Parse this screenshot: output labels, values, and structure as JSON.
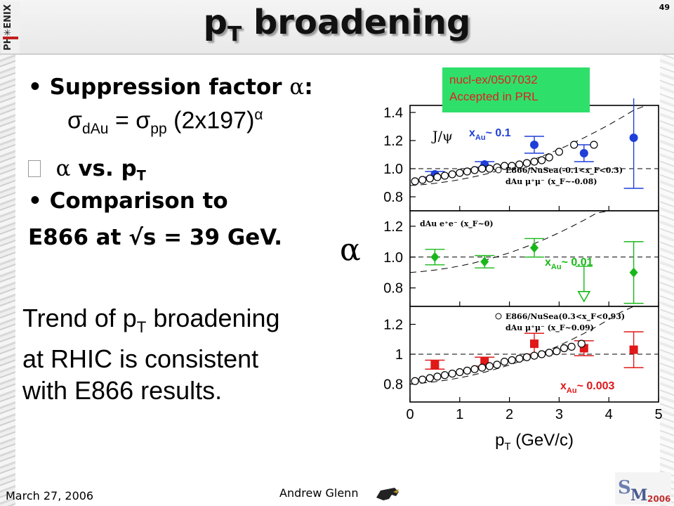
{
  "slide": {
    "title_main": "p",
    "title_sub": "T",
    "title_rest": " broadening",
    "number": "49"
  },
  "bullets": {
    "b1_text": "Suppression factor ",
    "b1_symbol": "α",
    "b1_colon": ":",
    "formula_sigma1": "σ",
    "formula_sub1": "dAu",
    "formula_eq": " = ",
    "formula_sigma2": "σ",
    "formula_sub2": "pp",
    "formula_rest": " (2x197)",
    "formula_sup": "α",
    "b2_marker": "",
    "b2_alpha": "α",
    "b2_text": " vs. p",
    "b2_sub": "T",
    "b3_text": "Comparison to",
    "b4_text": "E866 at √s = 39 GeV."
  },
  "trend": {
    "line1_a": "Trend of p",
    "line1_sub": "T",
    "line1_b": " broadening",
    "line2": "at RHIC is consistent",
    "line3": "with E866 results."
  },
  "ref_box": {
    "line1": "nucl-ex/0507032",
    "line2": "Accepted in PRL"
  },
  "footer": {
    "date": "March 27, 2006",
    "author": "Andrew Glenn"
  },
  "chart_data": {
    "type": "scatter",
    "y_symbol": "α",
    "xlabel": "p",
    "xlabel_sub": "T",
    "xlabel_rest": " (GeV/c)",
    "xlim": [
      0,
      5
    ],
    "xticks": [
      "0",
      "1",
      "2",
      "3",
      "4",
      "5"
    ],
    "panels": [
      {
        "ylim": [
          0.7,
          1.45
        ],
        "yticks": [
          "0.8",
          "1.0",
          "1.2",
          "1.4"
        ],
        "yvals": [
          0.8,
          1.0,
          1.2,
          1.4
        ],
        "label_jpsi": "J/ψ",
        "xau_main": "x",
        "xau_sub": "Au",
        "xau_rest": "~ 0.1",
        "xau_color": "#1f3fd8",
        "legend": [
          "E866/NuSea(-0.1<x_F<0.3)",
          "dAu μ⁺μ⁻ (x_F~-0.08)"
        ],
        "series": [
          {
            "name": "dAu μ⁺μ⁻ (x_F~-0.08)",
            "color": "#1f3fd8",
            "marker": "circle",
            "x": [
              0.5,
              1.5,
              2.5,
              3.5,
              4.5
            ],
            "y": [
              0.96,
              1.03,
              1.17,
              1.11,
              1.22
            ],
            "err": [
              0.02,
              0.02,
              0.06,
              0.06,
              0.36
            ]
          },
          {
            "name": "E866/NuSea(-0.1<x_F<0.3)",
            "color": "#000000",
            "marker": "open-circle",
            "x": [
              0.1,
              0.25,
              0.4,
              0.55,
              0.7,
              0.85,
              1.0,
              1.15,
              1.3,
              1.45,
              1.6,
              1.75,
              1.9,
              2.05,
              2.2,
              2.35,
              2.5,
              2.65,
              2.8,
              3.0,
              3.3,
              3.7
            ],
            "y": [
              0.91,
              0.92,
              0.93,
              0.94,
              0.95,
              0.96,
              0.97,
              0.98,
              0.99,
              1.0,
              1.0,
              1.01,
              1.02,
              1.02,
              1.03,
              1.04,
              1.05,
              1.06,
              1.08,
              1.12,
              1.17,
              1.17
            ]
          }
        ]
      },
      {
        "ylim": [
          0.68,
          1.3
        ],
        "yticks": [
          "0.8",
          "1.0",
          "1.2"
        ],
        "yvals": [
          0.8,
          1.0,
          1.2
        ],
        "legend": [
          "dAu e⁺e⁻ (x_F~0)"
        ],
        "xau_main": "x",
        "xau_sub": "Au",
        "xau_rest": "~ 0.01",
        "xau_color": "#18b818",
        "series": [
          {
            "name": "dAu e⁺e⁻ (x_F~0)",
            "color": "#18b818",
            "marker": "diamond",
            "x": [
              0.5,
              1.5,
              2.5,
              4.5
            ],
            "y": [
              1.0,
              0.97,
              1.06,
              0.9
            ],
            "err": [
              0.05,
              0.04,
              0.06,
              0.2
            ]
          },
          {
            "name": "upper limit",
            "color": "#18b818",
            "marker": "open-triangle-down",
            "x": [
              3.5
            ],
            "y": [
              0.74
            ]
          }
        ]
      },
      {
        "ylim": [
          0.68,
          1.32
        ],
        "yticks": [
          "0.8",
          "1",
          "1.2"
        ],
        "yvals": [
          0.8,
          1.0,
          1.2
        ],
        "legend": [
          "E866/NuSea(0.3<x_F<0.93)",
          "dAu μ⁺μ⁻ (x_F~0.09)"
        ],
        "xau_main": "x",
        "xau_sub": "Au",
        "xau_rest": "~ 0.003",
        "xau_color": "#e01818",
        "series": [
          {
            "name": "dAu μ⁺μ⁻ (x_F~0.09)",
            "color": "#e01818",
            "marker": "square",
            "x": [
              0.5,
              1.5,
              2.5,
              3.5,
              4.5
            ],
            "y": [
              0.93,
              0.95,
              1.07,
              1.04,
              1.03
            ],
            "err": [
              0.03,
              0.03,
              0.07,
              0.05,
              0.12
            ]
          },
          {
            "name": "E866/NuSea(0.3<x_F<0.93)",
            "color": "#000000",
            "marker": "open-circle",
            "x": [
              0.1,
              0.25,
              0.4,
              0.55,
              0.7,
              0.85,
              1.0,
              1.15,
              1.3,
              1.45,
              1.6,
              1.75,
              1.9,
              2.05,
              2.2,
              2.35,
              2.5,
              2.65,
              2.8,
              2.95,
              3.1,
              3.25,
              3.45
            ],
            "y": [
              0.82,
              0.83,
              0.84,
              0.85,
              0.86,
              0.87,
              0.88,
              0.89,
              0.9,
              0.91,
              0.92,
              0.93,
              0.95,
              0.96,
              0.97,
              0.98,
              0.99,
              1.0,
              1.01,
              1.02,
              1.04,
              1.05,
              1.07
            ]
          }
        ]
      }
    ]
  }
}
